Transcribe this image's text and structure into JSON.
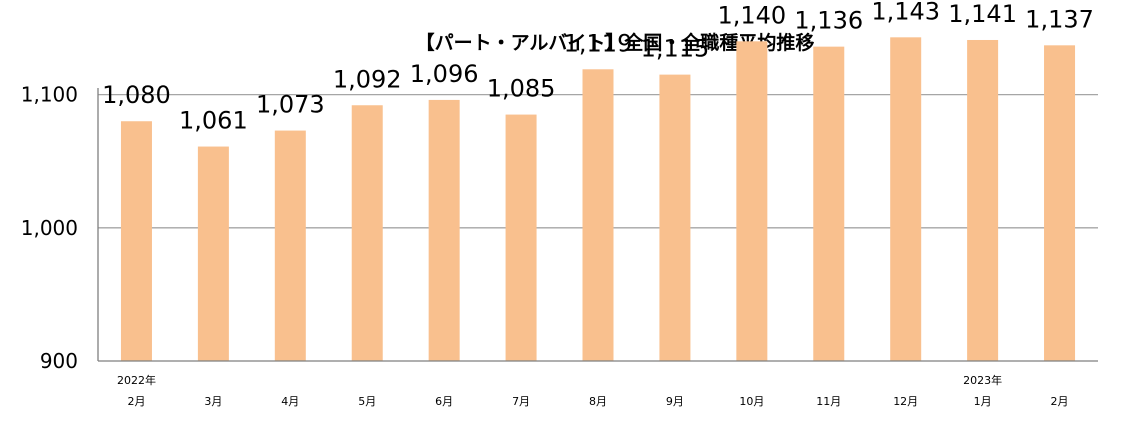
{
  "chart_data": {
    "type": "bar",
    "title": "【パート・アルバイト】全国・全職種平均推移",
    "categories": [
      [
        "2022年",
        "2月"
      ],
      [
        "",
        "3月"
      ],
      [
        "",
        "4月"
      ],
      [
        "",
        "5月"
      ],
      [
        "",
        "6月"
      ],
      [
        "",
        "7月"
      ],
      [
        "",
        "8月"
      ],
      [
        "",
        "9月"
      ],
      [
        "",
        "10月"
      ],
      [
        "",
        "11月"
      ],
      [
        "",
        "12月"
      ],
      [
        "2023年",
        "1月"
      ],
      [
        "",
        "2月"
      ]
    ],
    "values": [
      1080,
      1061,
      1073,
      1092,
      1096,
      1085,
      1119,
      1115,
      1140,
      1136,
      1143,
      1141,
      1137
    ],
    "data_labels": [
      "1,080",
      "1,061",
      "1,073",
      "1,092",
      "1,096",
      "1,085",
      "1,119",
      "1,115",
      "1,140",
      "1,136",
      "1,143",
      "1,141",
      "1,137"
    ],
    "yticks": [
      900,
      1000,
      1100
    ],
    "ytick_labels": [
      "900",
      "1,000",
      "1,100"
    ],
    "ylim": [
      900,
      1145
    ],
    "grid": true,
    "bar_color": "#F9C08E",
    "grid_color": "#A6A6A6"
  }
}
